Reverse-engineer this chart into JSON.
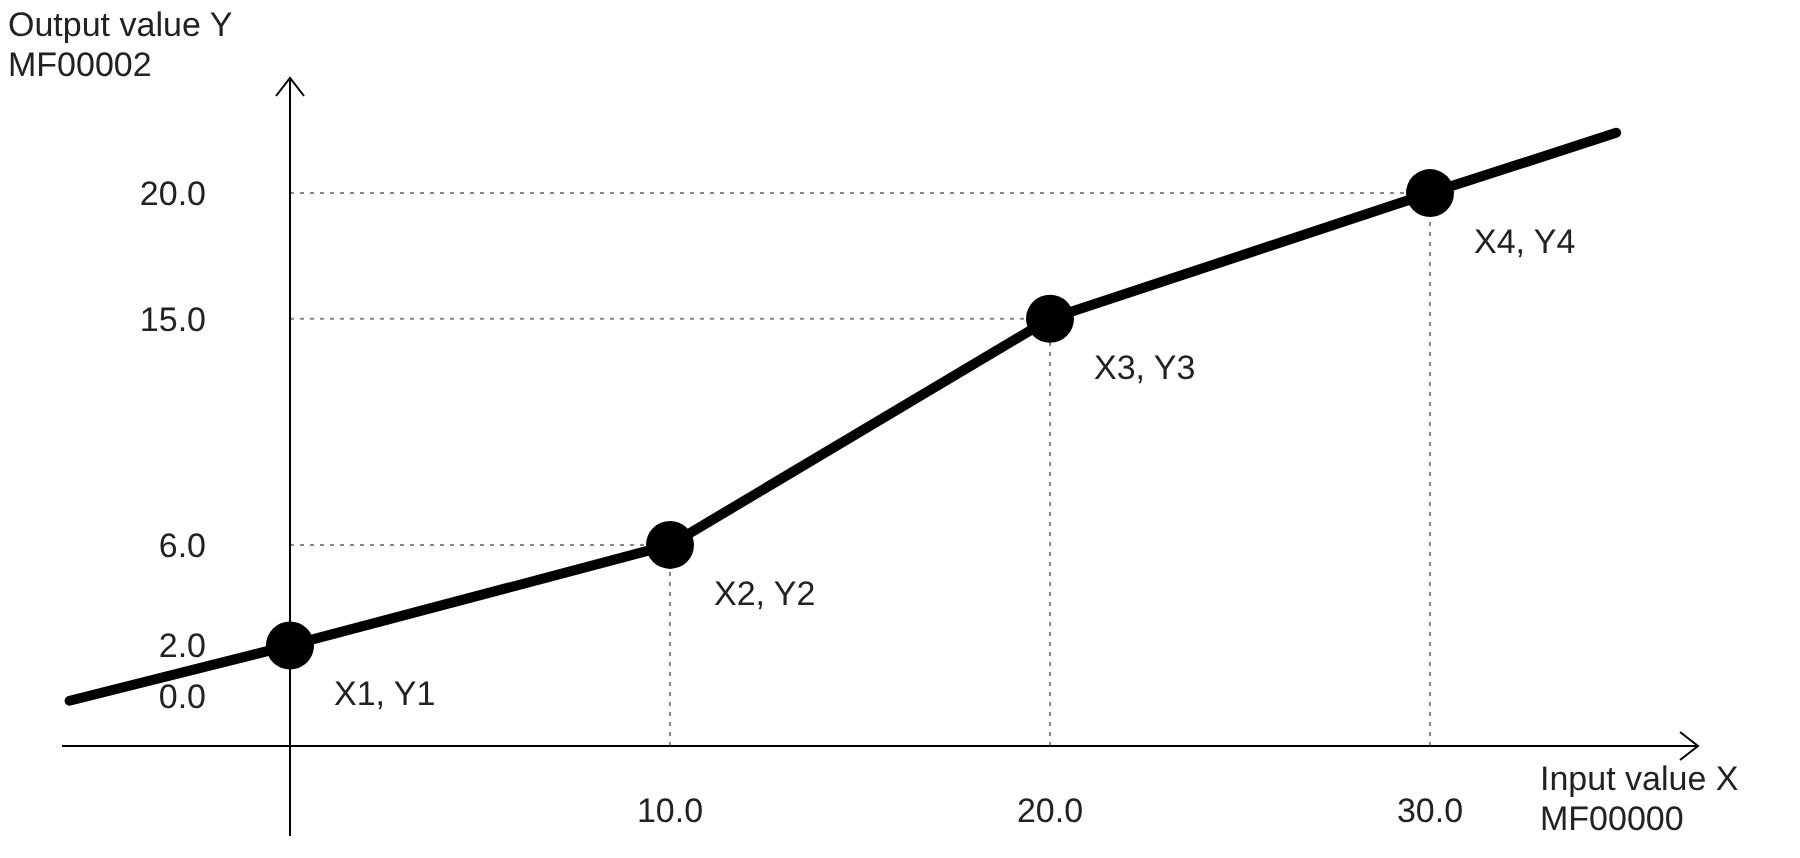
{
  "chart_data": {
    "type": "line",
    "xlabel": "Input value X\nMF00000",
    "ylabel": "Output value Y\nMF00002",
    "xlim": [
      -6,
      37
    ],
    "ylim": [
      -2,
      24.5
    ],
    "xticks": [
      {
        "value": 10,
        "label": "10.0"
      },
      {
        "value": 20,
        "label": "20.0"
      },
      {
        "value": 30,
        "label": "30.0"
      }
    ],
    "yticks": [
      {
        "value": 0,
        "label": "0.0"
      },
      {
        "value": 2,
        "label": "2.0"
      },
      {
        "value": 6,
        "label": "6.0"
      },
      {
        "value": 15,
        "label": "15.0"
      },
      {
        "value": 20,
        "label": "20.0"
      }
    ],
    "grid": false,
    "series": [
      {
        "color": "#000000",
        "marker": "none",
        "x": [
          -5.8,
          0,
          10,
          20,
          30,
          34.9
        ],
        "values": [
          -0.2,
          2,
          6,
          15,
          20,
          22.4
        ]
      },
      {
        "type": "scatter",
        "color": "#000000",
        "marker": "circle",
        "x": [
          0,
          10,
          20,
          30
        ],
        "values": [
          2,
          6,
          15,
          20
        ]
      }
    ],
    "ref_lines": [
      {
        "axis": "y",
        "value": 6,
        "line_style": "dotted",
        "color": "#888888"
      },
      {
        "axis": "y",
        "value": 15,
        "line_style": "dotted",
        "color": "#888888"
      },
      {
        "axis": "y",
        "value": 20,
        "line_style": "dotted",
        "color": "#888888"
      },
      {
        "axis": "x",
        "value": 10,
        "line_style": "dotted",
        "color": "#888888"
      },
      {
        "axis": "x",
        "value": 20,
        "line_style": "dotted",
        "color": "#888888"
      },
      {
        "axis": "x",
        "value": 30,
        "line_style": "dotted",
        "color": "#888888"
      }
    ],
    "annotations": [
      {
        "text": "X1, Y1",
        "x": 0,
        "y": 2
      },
      {
        "text": "X2, Y2",
        "x": 10,
        "y": 6
      },
      {
        "text": "X3, Y3",
        "x": 20,
        "y": 15
      },
      {
        "text": "X4, Y4",
        "x": 30,
        "y": 20
      }
    ]
  }
}
